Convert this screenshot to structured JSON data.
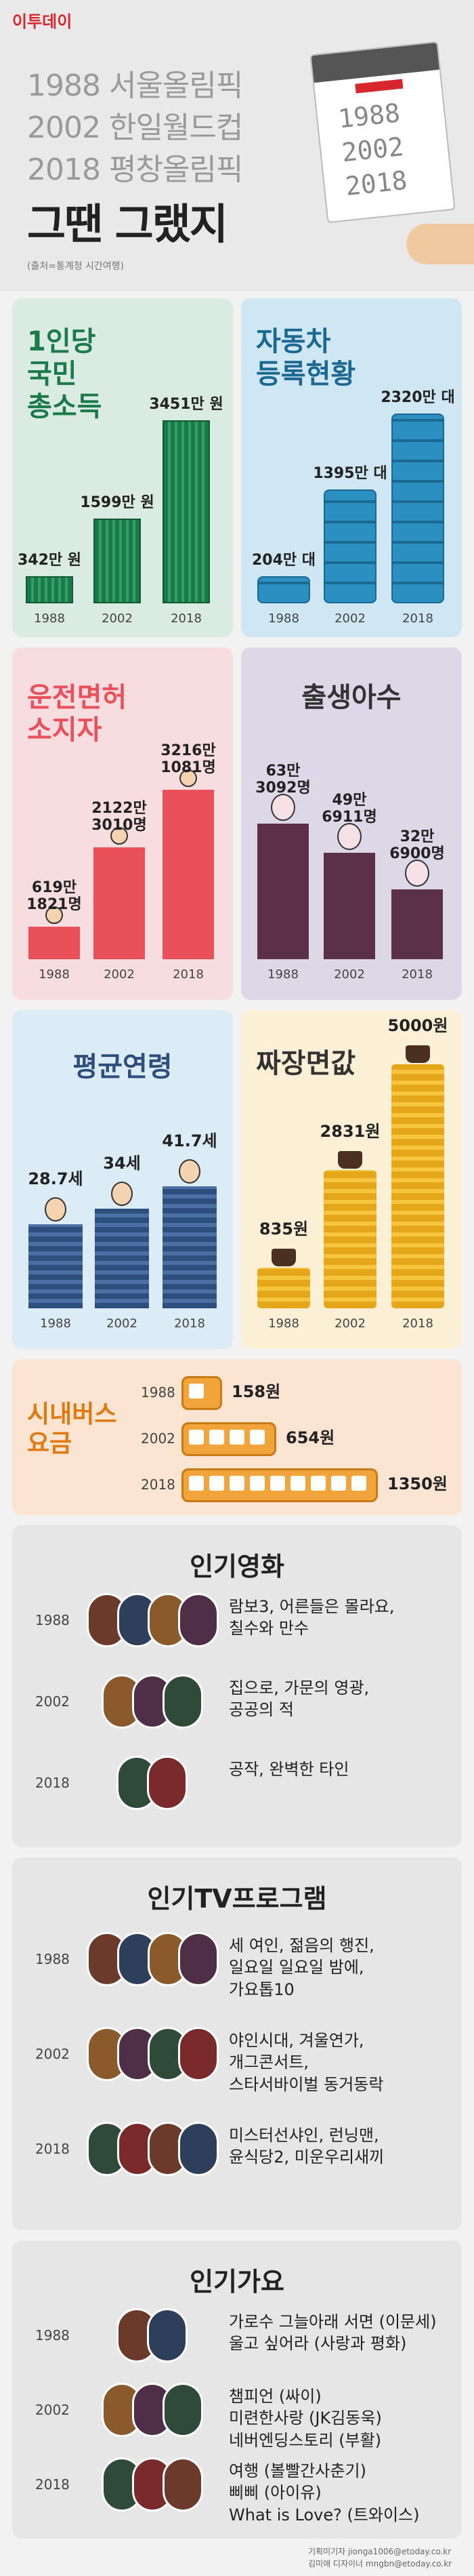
{
  "header": {
    "logo": "이투데이",
    "line1": "1988 서울올림픽",
    "line2": "2002 한일월드컵",
    "line3": "2018 평창올림픽",
    "title": "그땐 그랬지",
    "source": "(출처=통계청 시간여행)",
    "calendar_years": [
      "1988",
      "2002",
      "2018"
    ]
  },
  "income": {
    "title": "1인당\n국민\n총소득",
    "years": [
      "1988",
      "2002",
      "2018"
    ],
    "labels": [
      "342만 원",
      "1599만 원",
      "3451만 원"
    ],
    "values": [
      342,
      1599,
      3451
    ]
  },
  "cars": {
    "title": "자동차\n등록현황",
    "years": [
      "1988",
      "2002",
      "2018"
    ],
    "labels": [
      "204만 대",
      "1395만 대",
      "2320만 대"
    ],
    "values": [
      204,
      1395,
      2320
    ]
  },
  "license": {
    "title": "운전면허\n소지자",
    "years": [
      "1988",
      "2002",
      "2018"
    ],
    "labels": [
      "619만\n1821명",
      "2122만\n3010명",
      "3216만\n1081명"
    ],
    "values": [
      6191821,
      21223010,
      32161081
    ]
  },
  "births": {
    "title": "출생아수",
    "years": [
      "1988",
      "2002",
      "2018"
    ],
    "labels": [
      "63만\n3092명",
      "49만\n6911명",
      "32만\n6900명"
    ],
    "values": [
      633092,
      496911,
      326900
    ]
  },
  "age": {
    "title": "평균연령",
    "years": [
      "1988",
      "2002",
      "2018"
    ],
    "labels": [
      "28.7세",
      "34세",
      "41.7세"
    ],
    "values": [
      28.7,
      34,
      41.7
    ]
  },
  "jjajang": {
    "title": "짜장면값",
    "years": [
      "1988",
      "2002",
      "2018"
    ],
    "labels": [
      "835원",
      "2831원",
      "5000원"
    ],
    "values": [
      835,
      2831,
      5000
    ]
  },
  "bus": {
    "title": "시내버스\n요금",
    "years": [
      "1988",
      "2002",
      "2018"
    ],
    "labels": [
      "158원",
      "654원",
      "1350원"
    ],
    "values": [
      158,
      654,
      1350
    ]
  },
  "movies": {
    "title": "인기영화",
    "rows": [
      {
        "year": "1988",
        "text": "람보3, 어른들은 몰라요,\n칠수와 만수"
      },
      {
        "year": "2002",
        "text": "집으로, 가문의 영광,\n공공의 적"
      },
      {
        "year": "2018",
        "text": "공작, 완벽한 타인"
      }
    ]
  },
  "tv": {
    "title": "인기TV프로그램",
    "rows": [
      {
        "year": "1988",
        "text": "세 여인, 젊음의 행진,\n일요일 일요일 밤에,\n가요톱10"
      },
      {
        "year": "2002",
        "text": "야인시대, 겨울연가,\n개그콘서트,\n스타서바이벌 동거동락"
      },
      {
        "year": "2018",
        "text": "미스터선샤인, 런닝맨,\n윤식당2, 미운우리새끼"
      }
    ]
  },
  "music": {
    "title": "인기가요",
    "rows": [
      {
        "year": "1988",
        "text": "가로수 그늘아래 서면 (이문세)\n울고 싶어라 (사랑과 평화)"
      },
      {
        "year": "2002",
        "text": "챔피언 (싸이)\n미련한사랑 (JK김동욱)\n네버엔딩스토리 (부활)"
      },
      {
        "year": "2018",
        "text": "여행 (볼빨간사춘기)\n삐삐 (아이유)\nWhat is Love? (트와이스)"
      }
    ]
  },
  "footer": {
    "line1": "기획미기자 jionga1006@etoday.co.kr",
    "line2": "김미애 디자이너 mngbn@etoday.co.kr"
  },
  "colors": {
    "accent": "#d7262e",
    "money_green": "#1c7a4a",
    "car_blue": "#2b8fc1",
    "license_pink": "#e9505a",
    "birth_plum": "#5b3048",
    "age_navy": "#2e4f7d",
    "coin_gold": "#f5c542",
    "bus_orange": "#f1a43a"
  }
}
